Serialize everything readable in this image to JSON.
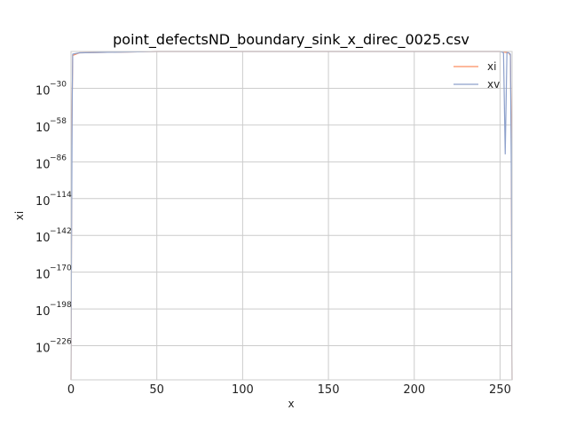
{
  "chart_data": {
    "type": "line",
    "title": "point_defectsND_boundary_sink_x_direc_0025.csv",
    "xlabel": "x",
    "ylabel": "xi",
    "xlim": [
      0,
      257
    ],
    "x_ticks": [
      0,
      50,
      100,
      150,
      200,
      250
    ],
    "y_scale": "log",
    "y_exp_lim": [
      -252,
      -2
    ],
    "y_ticks": [
      {
        "base": "10",
        "exp": "−30",
        "value_exp": -30
      },
      {
        "base": "10",
        "exp": "−58",
        "value_exp": -58
      },
      {
        "base": "10",
        "exp": "−86",
        "value_exp": -86
      },
      {
        "base": "10",
        "exp": "−114",
        "value_exp": -114
      },
      {
        "base": "10",
        "exp": "−142",
        "value_exp": -142
      },
      {
        "base": "10",
        "exp": "−170",
        "value_exp": -170
      },
      {
        "base": "10",
        "exp": "−198",
        "value_exp": -198
      },
      {
        "base": "10",
        "exp": "−226",
        "value_exp": -226
      }
    ],
    "grid": true,
    "legend_position": "top-right",
    "series": [
      {
        "name": "xi",
        "color": "#fc8d62",
        "points": [
          [
            0,
            -252
          ],
          [
            0.5,
            -60
          ],
          [
            1,
            -5
          ],
          [
            5,
            -3
          ],
          [
            50,
            -2
          ],
          [
            100,
            -2
          ],
          [
            150,
            -2
          ],
          [
            200,
            -2
          ],
          [
            250,
            -2
          ],
          [
            255,
            -3
          ],
          [
            256,
            -5
          ],
          [
            256.5,
            -60
          ],
          [
            257,
            -252
          ]
        ]
      },
      {
        "name": "xv",
        "color": "#8da0cb",
        "points": [
          [
            0,
            -252
          ],
          [
            0.3,
            -150
          ],
          [
            0.7,
            -40
          ],
          [
            1,
            -4
          ],
          [
            5,
            -3
          ],
          [
            50,
            -2
          ],
          [
            100,
            -2
          ],
          [
            150,
            -2
          ],
          [
            200,
            -2
          ],
          [
            250,
            -2
          ],
          [
            252,
            -3
          ],
          [
            253,
            -80
          ],
          [
            254,
            -3
          ],
          [
            255,
            -3
          ],
          [
            256,
            -4
          ],
          [
            256.6,
            -100
          ],
          [
            257,
            -252
          ]
        ]
      }
    ]
  }
}
